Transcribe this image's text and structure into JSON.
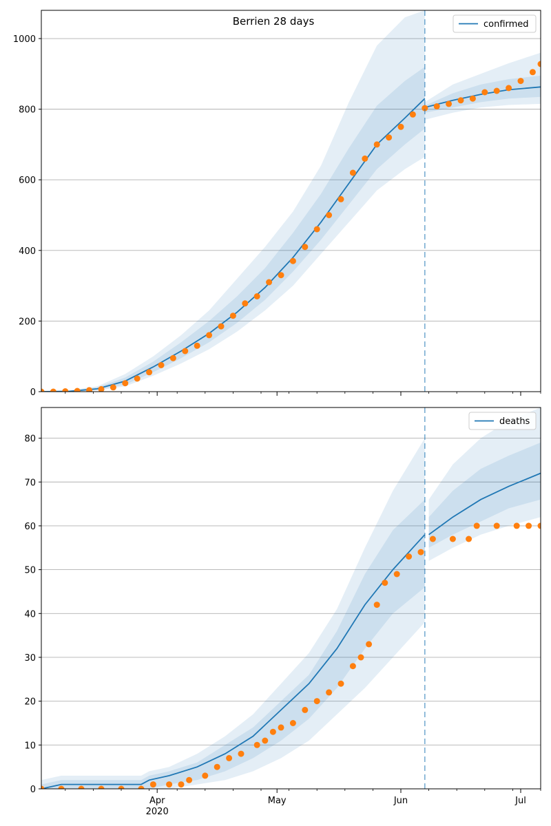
{
  "title": "Berrien 28 days",
  "colors": {
    "model": "#1f77b4",
    "observed": "#ff7f0e",
    "band": "#1f77b4",
    "grid": "#b0b0b0",
    "cutoff": "#1f77b4"
  },
  "x_axis": {
    "start": "2020-03-03",
    "end": "2020-07-06",
    "major_ticks": [
      {
        "date": "2020-04-01",
        "label": "Apr",
        "sublabel": "2020"
      },
      {
        "date": "2020-05-01",
        "label": "May",
        "sublabel": ""
      },
      {
        "date": "2020-06-01",
        "label": "Jun",
        "sublabel": ""
      },
      {
        "date": "2020-07-01",
        "label": "Jul",
        "sublabel": ""
      }
    ],
    "cutoff_date": "2020-06-07"
  },
  "chart_data": [
    {
      "type": "line",
      "legend": "confirmed",
      "legend_position": "top-right",
      "grid": "horizontal",
      "ylim": [
        0,
        1080
      ],
      "yticks": [
        0,
        200,
        400,
        600,
        800,
        1000
      ],
      "model_line": [
        [
          "2020-03-03",
          0
        ],
        [
          "2020-03-10",
          1
        ],
        [
          "2020-03-17",
          8
        ],
        [
          "2020-03-24",
          30
        ],
        [
          "2020-03-31",
          70
        ],
        [
          "2020-04-07",
          115
        ],
        [
          "2020-04-14",
          165
        ],
        [
          "2020-04-21",
          225
        ],
        [
          "2020-04-28",
          295
        ],
        [
          "2020-05-05",
          380
        ],
        [
          "2020-05-12",
          480
        ],
        [
          "2020-05-19",
          590
        ],
        [
          "2020-05-26",
          700
        ],
        [
          "2020-06-02",
          775
        ],
        [
          "2020-06-07",
          830
        ]
      ],
      "model_line_forecast": [
        [
          "2020-06-07",
          805
        ],
        [
          "2020-06-14",
          825
        ],
        [
          "2020-06-21",
          842
        ],
        [
          "2020-06-28",
          855
        ],
        [
          "2020-07-06",
          863
        ]
      ],
      "bands_fit": [
        {
          "lo": [
            0,
            0,
            3,
            15,
            45,
            80,
            120,
            170,
            230,
            300,
            390,
            480,
            570,
            630,
            665
          ],
          "hi": [
            2,
            4,
            15,
            50,
            100,
            160,
            230,
            320,
            410,
            510,
            640,
            820,
            980,
            1060,
            1080
          ]
        },
        {
          "lo": [
            0,
            0,
            5,
            20,
            55,
            95,
            140,
            195,
            260,
            340,
            430,
            530,
            630,
            700,
            745
          ],
          "hi": [
            1,
            3,
            12,
            40,
            85,
            140,
            200,
            270,
            350,
            450,
            560,
            690,
            810,
            880,
            920
          ]
        }
      ],
      "bands_forecast": [
        {
          "lo": [
            770,
            790,
            805,
            812,
            815
          ],
          "hi": [
            820,
            870,
            900,
            930,
            960
          ]
        },
        {
          "lo": [
            790,
            805,
            820,
            830,
            835
          ],
          "hi": [
            810,
            845,
            870,
            885,
            895
          ]
        }
      ],
      "observed": [
        [
          "2020-03-03",
          0
        ],
        [
          "2020-03-06",
          0
        ],
        [
          "2020-03-09",
          1
        ],
        [
          "2020-03-12",
          2
        ],
        [
          "2020-03-15",
          4
        ],
        [
          "2020-03-18",
          7
        ],
        [
          "2020-03-21",
          12
        ],
        [
          "2020-03-24",
          24
        ],
        [
          "2020-03-27",
          37
        ],
        [
          "2020-03-30",
          55
        ],
        [
          "2020-04-02",
          75
        ],
        [
          "2020-04-05",
          95
        ],
        [
          "2020-04-08",
          115
        ],
        [
          "2020-04-11",
          130
        ],
        [
          "2020-04-14",
          160
        ],
        [
          "2020-04-17",
          185
        ],
        [
          "2020-04-20",
          215
        ],
        [
          "2020-04-23",
          250
        ],
        [
          "2020-04-26",
          270
        ],
        [
          "2020-04-29",
          310
        ],
        [
          "2020-05-02",
          330
        ],
        [
          "2020-05-05",
          370
        ],
        [
          "2020-05-08",
          410
        ],
        [
          "2020-05-11",
          460
        ],
        [
          "2020-05-14",
          500
        ],
        [
          "2020-05-17",
          545
        ],
        [
          "2020-05-20",
          620
        ],
        [
          "2020-05-23",
          660
        ],
        [
          "2020-05-26",
          700
        ],
        [
          "2020-05-29",
          720
        ],
        [
          "2020-06-01",
          750
        ],
        [
          "2020-06-04",
          785
        ],
        [
          "2020-06-07",
          803
        ],
        [
          "2020-06-10",
          808
        ],
        [
          "2020-06-13",
          815
        ],
        [
          "2020-06-16",
          825
        ],
        [
          "2020-06-19",
          830
        ],
        [
          "2020-06-22",
          848
        ],
        [
          "2020-06-25",
          852
        ],
        [
          "2020-06-28",
          860
        ],
        [
          "2020-07-01",
          880
        ],
        [
          "2020-07-04",
          905
        ],
        [
          "2020-07-06",
          928
        ]
      ]
    },
    {
      "type": "line",
      "legend": "deaths",
      "legend_position": "top-right",
      "grid": "horizontal",
      "ylim": [
        0,
        87
      ],
      "yticks": [
        0,
        10,
        20,
        30,
        40,
        50,
        60,
        70,
        80
      ],
      "model_line": [
        [
          "2020-03-03",
          0
        ],
        [
          "2020-03-08",
          1
        ],
        [
          "2020-03-28",
          1
        ],
        [
          "2020-03-30",
          2
        ],
        [
          "2020-04-04",
          3
        ],
        [
          "2020-04-11",
          5
        ],
        [
          "2020-04-18",
          8
        ],
        [
          "2020-04-25",
          12
        ],
        [
          "2020-05-02",
          18
        ],
        [
          "2020-05-09",
          24
        ],
        [
          "2020-05-16",
          32
        ],
        [
          "2020-05-23",
          42
        ],
        [
          "2020-05-30",
          50
        ],
        [
          "2020-06-07",
          58
        ]
      ],
      "model_line_forecast": [
        [
          "2020-06-08",
          58
        ],
        [
          "2020-06-14",
          62
        ],
        [
          "2020-06-21",
          66
        ],
        [
          "2020-06-28",
          69
        ],
        [
          "2020-07-06",
          72
        ]
      ],
      "bands_fit": [
        {
          "lo": [
            0,
            0,
            0,
            0,
            0,
            1,
            2,
            4,
            7,
            11,
            17,
            23,
            30,
            38
          ],
          "hi": [
            2,
            3,
            3,
            4,
            5,
            8,
            12,
            17,
            24,
            31,
            41,
            55,
            68,
            80
          ]
        },
        {
          "lo": [
            0,
            0,
            0,
            0,
            1,
            2,
            4,
            7,
            11,
            16,
            23,
            32,
            40,
            46
          ],
          "hi": [
            1,
            2,
            2,
            3,
            4,
            6,
            10,
            14,
            20,
            26,
            36,
            49,
            59,
            66
          ]
        }
      ],
      "bands_forecast": [
        {
          "lo": [
            52,
            55,
            58,
            60,
            62
          ],
          "hi": [
            66,
            74,
            80,
            84,
            87
          ]
        },
        {
          "lo": [
            55,
            58,
            61,
            64,
            66
          ],
          "hi": [
            62,
            68,
            73,
            76,
            79
          ]
        }
      ],
      "observed": [
        [
          "2020-03-03",
          0
        ],
        [
          "2020-03-08",
          0
        ],
        [
          "2020-03-13",
          0
        ],
        [
          "2020-03-18",
          0
        ],
        [
          "2020-03-23",
          0
        ],
        [
          "2020-03-28",
          0
        ],
        [
          "2020-03-31",
          1
        ],
        [
          "2020-04-04",
          1
        ],
        [
          "2020-04-07",
          1
        ],
        [
          "2020-04-09",
          2
        ],
        [
          "2020-04-13",
          3
        ],
        [
          "2020-04-16",
          5
        ],
        [
          "2020-04-19",
          7
        ],
        [
          "2020-04-22",
          8
        ],
        [
          "2020-04-26",
          10
        ],
        [
          "2020-04-28",
          11
        ],
        [
          "2020-04-30",
          13
        ],
        [
          "2020-05-02",
          14
        ],
        [
          "2020-05-05",
          15
        ],
        [
          "2020-05-08",
          18
        ],
        [
          "2020-05-11",
          20
        ],
        [
          "2020-05-14",
          22
        ],
        [
          "2020-05-17",
          24
        ],
        [
          "2020-05-20",
          28
        ],
        [
          "2020-05-22",
          30
        ],
        [
          "2020-05-24",
          33
        ],
        [
          "2020-05-26",
          42
        ],
        [
          "2020-05-28",
          47
        ],
        [
          "2020-05-31",
          49
        ],
        [
          "2020-06-03",
          53
        ],
        [
          "2020-06-06",
          54
        ],
        [
          "2020-06-09",
          57
        ],
        [
          "2020-06-14",
          57
        ],
        [
          "2020-06-18",
          57
        ],
        [
          "2020-06-20",
          60
        ],
        [
          "2020-06-25",
          60
        ],
        [
          "2020-06-30",
          60
        ],
        [
          "2020-07-03",
          60
        ],
        [
          "2020-07-06",
          60
        ]
      ]
    }
  ]
}
